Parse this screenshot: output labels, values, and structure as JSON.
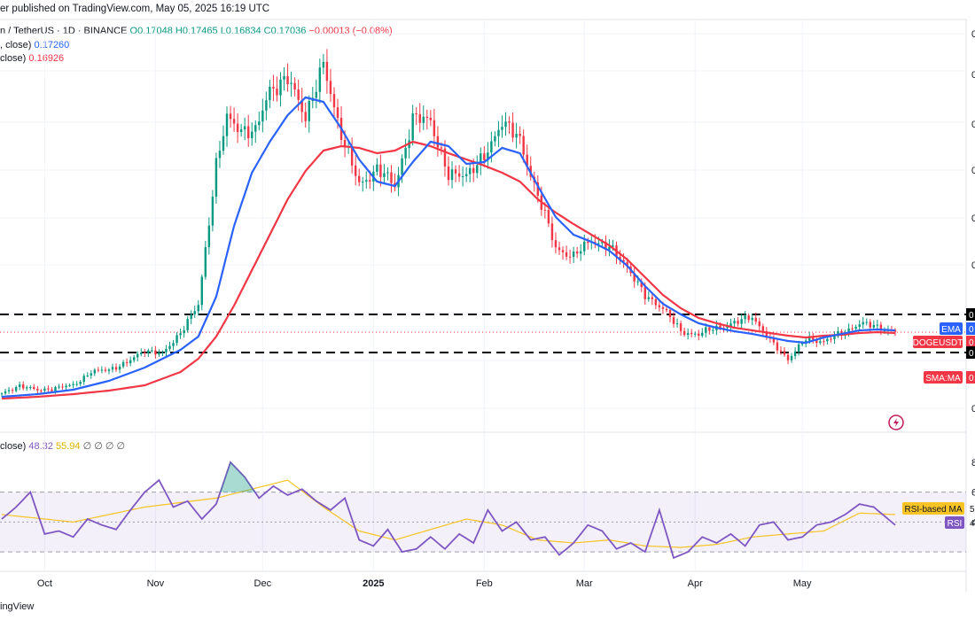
{
  "header": {
    "published": "er published on TradingView.com, May 05, 2025 16:19 UTC"
  },
  "symbol_line": {
    "name": "n / TetherUS · 1D · BINANCE",
    "open": "O0.17048",
    "high": "H0.17465",
    "low": "L0.16834",
    "close": "C0.17036",
    "change": "−0.00013 (−0.08%)"
  },
  "indicators": [
    {
      "label": ", close)",
      "value": "0.17260",
      "color": "#2962ff"
    },
    {
      "label": "close)",
      "value": "0.16926",
      "color": "#f23645"
    }
  ],
  "rsi_legend": {
    "label": "close)",
    "rsi": "48.32",
    "ma": "55.94",
    "extras": "∅ ∅ ∅ ∅"
  },
  "price_axis": {
    "ticks": [
      "0",
      "0",
      "0",
      "0",
      "0",
      "0",
      "0",
      "0"
    ],
    "tags": [
      {
        "label": "EMA",
        "value": "0",
        "color": "#2962ff"
      },
      {
        "label": "DOGEUSDT",
        "value": "0",
        "color": "#f23645"
      },
      {
        "label": "SMA:MA",
        "value": "0",
        "color": "#f23645"
      }
    ],
    "level_labels": [
      "0",
      "0"
    ]
  },
  "rsi_axis": {
    "ticks": [
      "8",
      "6",
      "4"
    ],
    "tags": [
      {
        "label": "RSI-based MA",
        "value": "5",
        "color": "#f7c325"
      },
      {
        "label": "RSI",
        "value": "4",
        "color": "#7e57c2"
      }
    ]
  },
  "colors": {
    "up": "#089981",
    "down": "#f23645",
    "ema": "#2962ff",
    "sma": "#f23645",
    "rsi": "#7e57c2",
    "rsima": "#f7c325"
  },
  "footer": {
    "brand": "ingView"
  },
  "chart_data": {
    "type": "candlestick",
    "title": "n / TetherUS · 1D · BINANCE",
    "x_labels": [
      "Oct",
      "Nov",
      "Dec",
      "2025",
      "Feb",
      "Mar",
      "Apr",
      "May"
    ],
    "series": [
      {
        "name": "Price close",
        "x": [
          0,
          5,
          10,
          15,
          20,
          25,
          30,
          35,
          40,
          45,
          50,
          55,
          60,
          63,
          67,
          71,
          75,
          80,
          85,
          90,
          95,
          100,
          105,
          110,
          115,
          120,
          125,
          130,
          135,
          140,
          145,
          150,
          155,
          160,
          165,
          170,
          175,
          180,
          185,
          190,
          195,
          200,
          205,
          210,
          215,
          220,
          225,
          230,
          235,
          240,
          245,
          250
        ],
        "values": [
          0.1,
          0.11,
          0.104,
          0.107,
          0.11,
          0.125,
          0.128,
          0.135,
          0.15,
          0.145,
          0.17,
          0.2,
          0.36,
          0.41,
          0.4,
          0.395,
          0.445,
          0.455,
          0.415,
          0.47,
          0.395,
          0.335,
          0.355,
          0.335,
          0.41,
          0.41,
          0.345,
          0.35,
          0.365,
          0.41,
          0.385,
          0.325,
          0.265,
          0.255,
          0.275,
          0.265,
          0.245,
          0.21,
          0.198,
          0.17,
          0.168,
          0.175,
          0.18,
          0.188,
          0.16,
          0.14,
          0.162,
          0.16,
          0.168,
          0.18,
          0.176,
          0.17
        ]
      },
      {
        "name": "EMA (blue)",
        "x": [
          0,
          10,
          20,
          30,
          40,
          50,
          55,
          60,
          65,
          70,
          75,
          80,
          85,
          90,
          95,
          100,
          105,
          110,
          115,
          120,
          125,
          130,
          135,
          140,
          145,
          150,
          155,
          160,
          165,
          170,
          175,
          180,
          185,
          190,
          195,
          200,
          205,
          210,
          215,
          220,
          225,
          230,
          235,
          240,
          245,
          250
        ],
        "values": [
          0.097,
          0.1,
          0.105,
          0.115,
          0.13,
          0.15,
          0.165,
          0.21,
          0.29,
          0.35,
          0.385,
          0.415,
          0.435,
          0.43,
          0.4,
          0.365,
          0.34,
          0.335,
          0.362,
          0.385,
          0.38,
          0.36,
          0.362,
          0.378,
          0.372,
          0.335,
          0.3,
          0.28,
          0.272,
          0.262,
          0.245,
          0.222,
          0.202,
          0.19,
          0.18,
          0.175,
          0.171,
          0.168,
          0.164,
          0.16,
          0.158,
          0.164,
          0.168,
          0.172,
          0.173,
          0.172
        ]
      },
      {
        "name": "SMA (red)",
        "x": [
          0,
          10,
          20,
          30,
          40,
          50,
          55,
          60,
          65,
          70,
          75,
          80,
          85,
          90,
          95,
          100,
          105,
          110,
          115,
          120,
          125,
          130,
          135,
          140,
          145,
          150,
          155,
          160,
          165,
          170,
          175,
          180,
          185,
          190,
          195,
          200,
          205,
          210,
          215,
          220,
          225,
          230,
          235,
          240,
          245,
          250
        ],
        "values": [
          0.095,
          0.097,
          0.1,
          0.104,
          0.11,
          0.125,
          0.14,
          0.165,
          0.2,
          0.24,
          0.28,
          0.32,
          0.352,
          0.375,
          0.38,
          0.378,
          0.372,
          0.375,
          0.385,
          0.38,
          0.372,
          0.365,
          0.358,
          0.35,
          0.34,
          0.32,
          0.305,
          0.292,
          0.28,
          0.268,
          0.252,
          0.232,
          0.212,
          0.197,
          0.186,
          0.18,
          0.175,
          0.172,
          0.169,
          0.166,
          0.164,
          0.166,
          0.167,
          0.169,
          0.17,
          0.169
        ]
      },
      {
        "name": "RSI",
        "x": [
          0,
          4,
          8,
          12,
          16,
          20,
          24,
          28,
          32,
          36,
          40,
          44,
          48,
          52,
          56,
          60,
          64,
          68,
          72,
          76,
          80,
          84,
          88,
          92,
          96,
          100,
          104,
          108,
          112,
          116,
          120,
          124,
          128,
          132,
          136,
          140,
          144,
          148,
          152,
          156,
          160,
          164,
          168,
          172,
          176,
          180,
          184,
          188,
          192,
          196,
          200,
          204,
          208,
          212,
          216,
          220,
          224,
          228,
          232,
          236,
          240,
          244,
          248,
          250
        ],
        "values": [
          52,
          60,
          70,
          42,
          44,
          40,
          52,
          48,
          45,
          58,
          70,
          78,
          60,
          64,
          52,
          62,
          90,
          80,
          66,
          74,
          68,
          72,
          64,
          58,
          66,
          38,
          34,
          45,
          30,
          32,
          40,
          32,
          42,
          36,
          58,
          44,
          50,
          38,
          40,
          28,
          36,
          48,
          44,
          32,
          36,
          30,
          58,
          26,
          30,
          40,
          36,
          42,
          34,
          48,
          50,
          38,
          40,
          48,
          50,
          55,
          62,
          60,
          52,
          48
        ]
      },
      {
        "name": "RSI-based MA",
        "x": [
          0,
          20,
          40,
          60,
          70,
          80,
          90,
          100,
          110,
          120,
          130,
          140,
          150,
          160,
          170,
          180,
          190,
          200,
          210,
          220,
          230,
          240,
          250
        ],
        "values": [
          55,
          50,
          60,
          66,
          72,
          78,
          60,
          44,
          38,
          45,
          52,
          48,
          38,
          36,
          38,
          34,
          33,
          35,
          40,
          42,
          44,
          56,
          55
        ]
      }
    ],
    "levels": [
      0.19,
      0.147
    ],
    "levels_style": "dashed black horizontal lines",
    "y_range": [
      0.08,
      0.5
    ],
    "rsi_range": [
      20,
      100
    ],
    "rsi_bands": [
      70,
      50,
      30
    ]
  }
}
